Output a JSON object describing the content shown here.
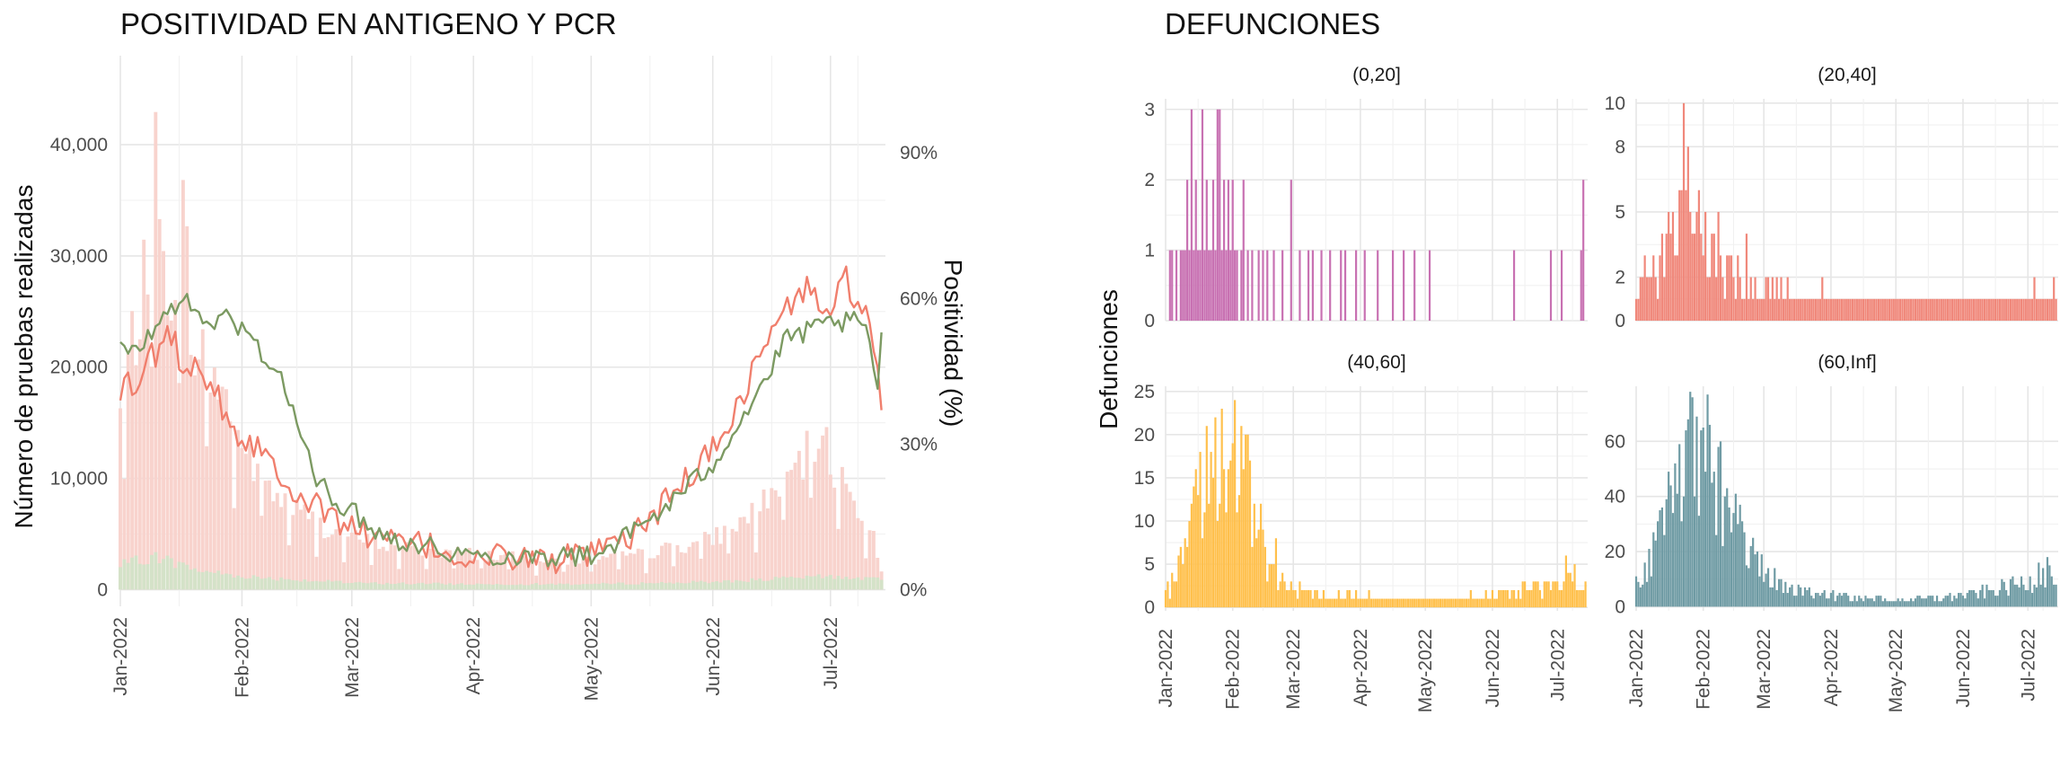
{
  "chart_data": [
    {
      "type": "bar",
      "title_parts": [
        "POSITIVIDAD EN ",
        "ANTIGENO",
        " Y ",
        "PCR"
      ],
      "title_colors": [
        "#111111",
        "#f07f6d",
        "#111111",
        "#7c9a62"
      ],
      "ylabel": "Número de pruebas realizadas",
      "ylabel_right": "Positividad (%)",
      "x_range": [
        "2022-01-01",
        "2022-07-15"
      ],
      "x_ticks": [
        "Jan-2022",
        "Feb-2022",
        "Mar-2022",
        "Apr-2022",
        "May-2022",
        "Jun-2022",
        "Jul-2022"
      ],
      "x_tick_dates": [
        "2022-01-01",
        "2022-02-01",
        "2022-03-01",
        "2022-04-01",
        "2022-05-01",
        "2022-06-01",
        "2022-07-01"
      ],
      "ylim": [
        -1500,
        48000
      ],
      "y_ticks": [
        0,
        10000,
        20000,
        30000,
        40000
      ],
      "y_tick_labels": [
        "0",
        "10,000",
        "20,000",
        "30,000",
        "40,000"
      ],
      "ylim_right": [
        -3.4,
        110
      ],
      "y_ticks_right": [
        0,
        30,
        60,
        90
      ],
      "y_tick_labels_right": [
        "0%",
        "30%",
        "60%",
        "90%"
      ],
      "grid": true,
      "colors": {
        "antigeno": "#f07f6d",
        "pcr": "#7c9a62",
        "antigeno_bars": "#f8d3cd",
        "pcr_bars": "#cfe3c8"
      },
      "bars_antigeno_keypoints": [
        [
          "2022-01-01",
          17000
        ],
        [
          "2022-01-05",
          26000
        ],
        [
          "2022-01-08",
          30000
        ],
        [
          "2022-01-09",
          47000
        ],
        [
          "2022-01-11",
          33000
        ],
        [
          "2022-01-13",
          30000
        ],
        [
          "2022-01-17",
          35000
        ],
        [
          "2022-01-20",
          24000
        ],
        [
          "2022-01-25",
          21000
        ],
        [
          "2022-02-01",
          14000
        ],
        [
          "2022-02-10",
          9000
        ],
        [
          "2022-02-20",
          6500
        ],
        [
          "2022-03-01",
          5000
        ],
        [
          "2022-03-15",
          4000
        ],
        [
          "2022-04-01",
          3500
        ],
        [
          "2022-04-15",
          3000
        ],
        [
          "2022-05-01",
          2800
        ],
        [
          "2022-05-15",
          3500
        ],
        [
          "2022-06-01",
          5000
        ],
        [
          "2022-06-10",
          7000
        ],
        [
          "2022-06-18",
          10000
        ],
        [
          "2022-06-25",
          13000
        ],
        [
          "2022-06-28",
          15000
        ],
        [
          "2022-07-02",
          12000
        ],
        [
          "2022-07-08",
          8000
        ],
        [
          "2022-07-12",
          5000
        ],
        [
          "2022-07-14",
          2000
        ]
      ],
      "bars_pcr_keypoints": [
        [
          "2022-01-01",
          2200
        ],
        [
          "2022-01-10",
          3000
        ],
        [
          "2022-01-20",
          1800
        ],
        [
          "2022-02-01",
          1200
        ],
        [
          "2022-03-01",
          600
        ],
        [
          "2022-04-01",
          500
        ],
        [
          "2022-05-01",
          500
        ],
        [
          "2022-06-01",
          700
        ],
        [
          "2022-07-01",
          1200
        ],
        [
          "2022-07-14",
          900
        ]
      ],
      "series": [
        {
          "name": "ANTIGENO",
          "x": [
            "2022-01-01",
            "2022-01-03",
            "2022-01-06",
            "2022-01-08",
            "2022-01-10",
            "2022-01-13",
            "2022-01-16",
            "2022-01-19",
            "2022-01-22",
            "2022-01-25",
            "2022-01-28",
            "2022-02-01",
            "2022-02-05",
            "2022-02-10",
            "2022-02-15",
            "2022-02-20",
            "2022-03-01",
            "2022-03-10",
            "2022-03-20",
            "2022-04-01",
            "2022-04-10",
            "2022-04-20",
            "2022-05-01",
            "2022-05-10",
            "2022-05-20",
            "2022-06-01",
            "2022-06-08",
            "2022-06-15",
            "2022-06-20",
            "2022-06-25",
            "2022-07-01",
            "2022-07-05",
            "2022-07-08",
            "2022-07-11",
            "2022-07-13",
            "2022-07-14"
          ],
          "y": [
            39,
            43,
            40,
            50,
            47,
            55,
            48,
            47,
            45,
            42,
            36,
            31,
            30,
            25,
            20,
            17,
            13,
            10,
            9,
            6,
            7,
            6,
            7,
            10,
            18,
            29,
            39,
            52,
            58,
            62,
            57,
            64,
            59,
            54,
            45,
            37
          ]
        },
        {
          "name": "PCR",
          "x": [
            "2022-01-01",
            "2022-01-03",
            "2022-01-06",
            "2022-01-08",
            "2022-01-10",
            "2022-01-13",
            "2022-01-16",
            "2022-01-19",
            "2022-01-22",
            "2022-01-25",
            "2022-01-28",
            "2022-02-01",
            "2022-02-05",
            "2022-02-10",
            "2022-02-15",
            "2022-02-20",
            "2022-03-01",
            "2022-03-10",
            "2022-03-20",
            "2022-04-01",
            "2022-04-10",
            "2022-04-20",
            "2022-05-01",
            "2022-05-10",
            "2022-05-20",
            "2022-06-01",
            "2022-06-08",
            "2022-06-15",
            "2022-06-20",
            "2022-06-25",
            "2022-07-01",
            "2022-07-05",
            "2022-07-08",
            "2022-07-11",
            "2022-07-13",
            "2022-07-14"
          ],
          "y": [
            51,
            48,
            50,
            52,
            54,
            57,
            60,
            58,
            56,
            55,
            56,
            54,
            50,
            45,
            35,
            22,
            16,
            11,
            9,
            7,
            7,
            7,
            7,
            11,
            17,
            26,
            35,
            44,
            52,
            53,
            55,
            55,
            55,
            52,
            40,
            53
          ]
        }
      ]
    },
    {
      "type": "bar",
      "title": "DEFUNCIONES",
      "ylabel": "Defunciones",
      "x_range": [
        "2022-01-01",
        "2022-07-15"
      ],
      "x_ticks": [
        "Jan-2022",
        "Feb-2022",
        "Mar-2022",
        "Apr-2022",
        "May-2022",
        "Jun-2022",
        "Jul-2022"
      ],
      "x_tick_dates": [
        "2022-01-01",
        "2022-02-01",
        "2022-03-01",
        "2022-04-01",
        "2022-05-01",
        "2022-06-01",
        "2022-07-01"
      ],
      "grid": true,
      "panels": [
        {
          "label": "(0,20]",
          "color": "#c871b2",
          "ylim": [
            0,
            3.15
          ],
          "y_ticks": [
            0,
            1,
            2,
            3
          ],
          "y_tick_labels": [
            "0",
            "1",
            "2",
            "3"
          ],
          "daily": [
            [
              "2022-01-03",
              1
            ],
            [
              "2022-01-04",
              1
            ],
            [
              "2022-01-06",
              1
            ],
            [
              "2022-01-08",
              1
            ],
            [
              "2022-01-09",
              1
            ],
            [
              "2022-01-10",
              1
            ],
            [
              "2022-01-11",
              2
            ],
            [
              "2022-01-12",
              1
            ],
            [
              "2022-01-13",
              3
            ],
            [
              "2022-01-14",
              1
            ],
            [
              "2022-01-15",
              2
            ],
            [
              "2022-01-16",
              1
            ],
            [
              "2022-01-17",
              1
            ],
            [
              "2022-01-18",
              3
            ],
            [
              "2022-01-19",
              1
            ],
            [
              "2022-01-20",
              2
            ],
            [
              "2022-01-21",
              1
            ],
            [
              "2022-01-22",
              1
            ],
            [
              "2022-01-23",
              2
            ],
            [
              "2022-01-24",
              1
            ],
            [
              "2022-01-25",
              3
            ],
            [
              "2022-01-26",
              3
            ],
            [
              "2022-01-27",
              1
            ],
            [
              "2022-01-28",
              2
            ],
            [
              "2022-01-29",
              1
            ],
            [
              "2022-01-30",
              2
            ],
            [
              "2022-01-31",
              1
            ],
            [
              "2022-02-01",
              2
            ],
            [
              "2022-02-02",
              1
            ],
            [
              "2022-02-03",
              1
            ],
            [
              "2022-02-05",
              1
            ],
            [
              "2022-02-06",
              2
            ],
            [
              "2022-02-08",
              1
            ],
            [
              "2022-02-10",
              1
            ],
            [
              "2022-02-13",
              1
            ],
            [
              "2022-02-15",
              1
            ],
            [
              "2022-02-17",
              1
            ],
            [
              "2022-02-20",
              1
            ],
            [
              "2022-02-24",
              1
            ],
            [
              "2022-02-28",
              2
            ],
            [
              "2022-03-04",
              1
            ],
            [
              "2022-03-08",
              1
            ],
            [
              "2022-03-10",
              1
            ],
            [
              "2022-03-14",
              1
            ],
            [
              "2022-03-18",
              1
            ],
            [
              "2022-03-23",
              1
            ],
            [
              "2022-03-25",
              1
            ],
            [
              "2022-03-30",
              1
            ],
            [
              "2022-04-03",
              1
            ],
            [
              "2022-04-09",
              1
            ],
            [
              "2022-04-16",
              1
            ],
            [
              "2022-04-21",
              1
            ],
            [
              "2022-04-26",
              1
            ],
            [
              "2022-05-03",
              1
            ],
            [
              "2022-06-11",
              1
            ],
            [
              "2022-06-28",
              1
            ],
            [
              "2022-07-03",
              1
            ],
            [
              "2022-07-12",
              1
            ],
            [
              "2022-07-13",
              2
            ]
          ]
        },
        {
          "label": "(20,40]",
          "color": "#f0887b",
          "ylim": [
            0,
            10.2
          ],
          "y_ticks": [
            0,
            2,
            5,
            8,
            10
          ],
          "y_tick_labels": [
            "0",
            "2",
            "5",
            "8",
            "10"
          ],
          "keypoints": [
            [
              "2022-01-01",
              1
            ],
            [
              "2022-01-05",
              2
            ],
            [
              "2022-01-10",
              2
            ],
            [
              "2022-01-15",
              4
            ],
            [
              "2022-01-20",
              5
            ],
            [
              "2022-01-24",
              7
            ],
            [
              "2022-01-28",
              4
            ],
            [
              "2022-02-05",
              3
            ],
            [
              "2022-02-15",
              2
            ],
            [
              "2022-03-01",
              1.5
            ],
            [
              "2022-03-20",
              1
            ],
            [
              "2022-04-15",
              1
            ],
            [
              "2022-05-15",
              1
            ],
            [
              "2022-06-15",
              1
            ],
            [
              "2022-07-14",
              1
            ]
          ],
          "peaks": [
            [
              "2022-01-17",
              4
            ],
            [
              "2022-01-21",
              6
            ],
            [
              "2022-01-23",
              10
            ],
            [
              "2022-01-25",
              8
            ],
            [
              "2022-01-30",
              6
            ],
            [
              "2022-02-02",
              5
            ],
            [
              "2022-02-06",
              4
            ],
            [
              "2022-02-08",
              5
            ],
            [
              "2022-02-13",
              3
            ],
            [
              "2022-02-21",
              4
            ],
            [
              "2022-03-09",
              2
            ],
            [
              "2022-03-28",
              2
            ],
            [
              "2022-07-04",
              2
            ],
            [
              "2022-07-13",
              2
            ]
          ]
        },
        {
          "label": "(40,60]",
          "color": "#ffc04c",
          "ylim": [
            -0.4,
            25.6
          ],
          "y_ticks": [
            0,
            5,
            10,
            15,
            20,
            25
          ],
          "y_tick_labels": [
            "0",
            "5",
            "10",
            "15",
            "20",
            "25"
          ],
          "keypoints": [
            [
              "2022-01-01",
              2
            ],
            [
              "2022-01-05",
              3
            ],
            [
              "2022-01-10",
              6
            ],
            [
              "2022-01-15",
              11
            ],
            [
              "2022-01-20",
              16
            ],
            [
              "2022-01-25",
              18
            ],
            [
              "2022-01-30",
              19
            ],
            [
              "2022-02-03",
              18
            ],
            [
              "2022-02-07",
              15
            ],
            [
              "2022-02-12",
              9
            ],
            [
              "2022-02-18",
              5
            ],
            [
              "2022-02-25",
              3
            ],
            [
              "2022-03-05",
              2
            ],
            [
              "2022-03-20",
              1.2
            ],
            [
              "2022-04-15",
              1
            ],
            [
              "2022-05-15",
              1
            ],
            [
              "2022-06-15",
              2
            ],
            [
              "2022-07-10",
              3
            ],
            [
              "2022-07-14",
              3
            ]
          ],
          "peaks": [
            [
              "2022-01-24",
              22
            ],
            [
              "2022-01-27",
              23
            ],
            [
              "2022-02-02",
              24
            ],
            [
              "2022-02-05",
              21
            ],
            [
              "2022-02-14",
              12
            ],
            [
              "2022-02-21",
              8
            ],
            [
              "2022-07-05",
              6
            ],
            [
              "2022-07-09",
              5
            ]
          ]
        },
        {
          "label": "(60,Inf]",
          "color": "#6f9ba4",
          "ylim": [
            -1.5,
            80
          ],
          "y_ticks": [
            0,
            20,
            40,
            60
          ],
          "y_tick_labels": [
            "0",
            "20",
            "40",
            "60"
          ],
          "keypoints": [
            [
              "2022-01-01",
              8
            ],
            [
              "2022-01-06",
              13
            ],
            [
              "2022-01-11",
              26
            ],
            [
              "2022-01-16",
              38
            ],
            [
              "2022-01-21",
              50
            ],
            [
              "2022-01-26",
              62
            ],
            [
              "2022-01-31",
              58
            ],
            [
              "2022-02-04",
              52
            ],
            [
              "2022-02-09",
              42
            ],
            [
              "2022-02-14",
              32
            ],
            [
              "2022-02-19",
              24
            ],
            [
              "2022-02-26",
              16
            ],
            [
              "2022-03-05",
              10
            ],
            [
              "2022-03-15",
              6
            ],
            [
              "2022-04-01",
              4
            ],
            [
              "2022-04-15",
              3
            ],
            [
              "2022-05-01",
              2.5
            ],
            [
              "2022-05-15",
              3
            ],
            [
              "2022-06-01",
              4
            ],
            [
              "2022-06-15",
              6
            ],
            [
              "2022-07-01",
              9
            ],
            [
              "2022-07-10",
              12
            ],
            [
              "2022-07-14",
              9
            ]
          ],
          "peaks": [
            [
              "2022-01-27",
              76
            ],
            [
              "2022-01-29",
              69
            ],
            [
              "2022-02-01",
              65
            ],
            [
              "2022-02-04",
              66
            ],
            [
              "2022-02-08",
              58
            ],
            [
              "2022-07-06",
              16
            ],
            [
              "2022-07-10",
              18
            ]
          ]
        }
      ]
    }
  ]
}
